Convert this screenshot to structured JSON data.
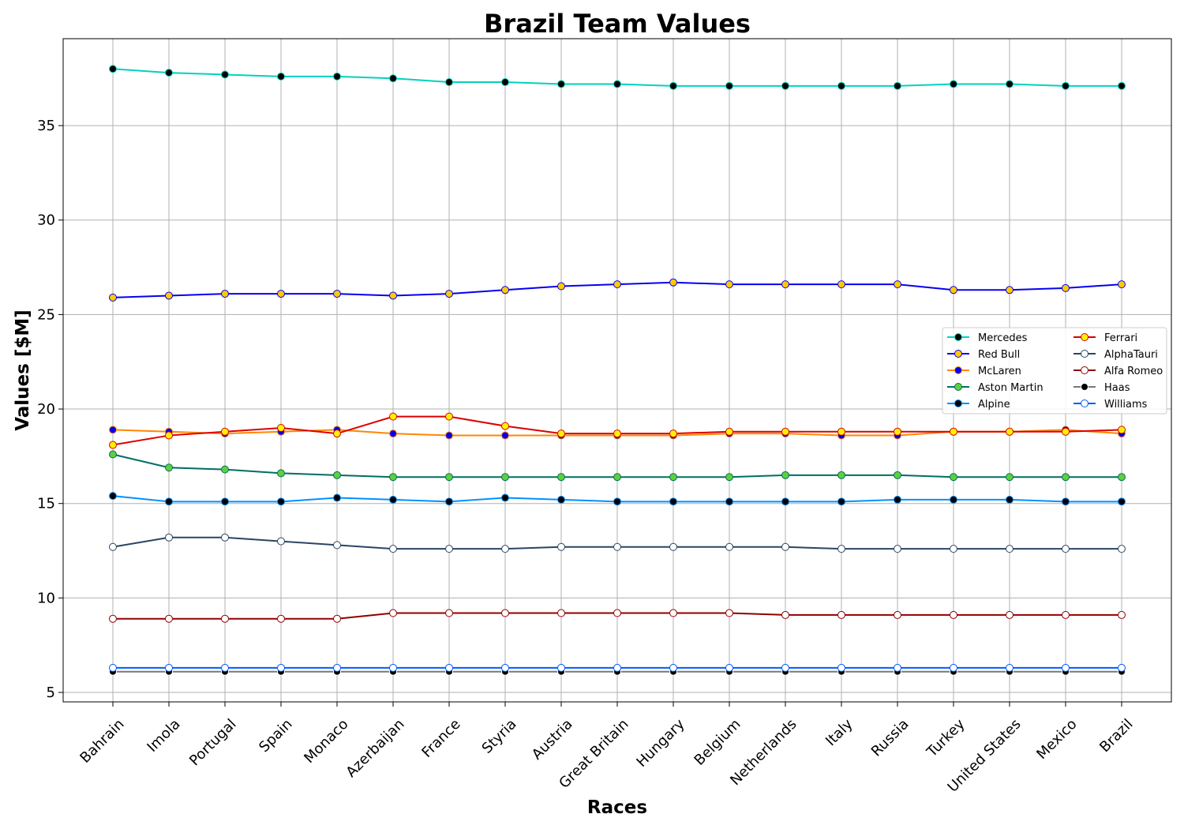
{
  "chart_data": {
    "type": "line",
    "title": "Brazil Team Values",
    "xlabel": "Races",
    "ylabel": "Values [$M]",
    "ylim": [
      4.5,
      39.6
    ],
    "yticks": [
      5,
      10,
      15,
      20,
      25,
      30,
      35
    ],
    "grid": true,
    "legend_position": "right",
    "categories": [
      "Bahrain",
      "Imola",
      "Portugal",
      "Spain",
      "Monaco",
      "Azerbaijan",
      "France",
      "Styria",
      "Austria",
      "Great Britain",
      "Hungary",
      "Belgium",
      "Netherlands",
      "Italy",
      "Russia",
      "Turkey",
      "United States",
      "Mexico",
      "Brazil"
    ],
    "series": [
      {
        "name": "Mercedes",
        "color": "#00D2BE",
        "marker_fill": "#000000",
        "marker_edge": "#00D2BE",
        "values": [
          38.0,
          37.8,
          37.7,
          37.6,
          37.6,
          37.5,
          37.3,
          37.3,
          37.2,
          37.2,
          37.1,
          37.1,
          37.1,
          37.1,
          37.1,
          37.2,
          37.2,
          37.1,
          37.1
        ]
      },
      {
        "name": "Red Bull",
        "color": "#0600EF",
        "marker_fill": "#FFC906",
        "marker_edge": "#0600EF",
        "values": [
          25.9,
          26.0,
          26.1,
          26.1,
          26.1,
          26.0,
          26.1,
          26.3,
          26.5,
          26.6,
          26.7,
          26.6,
          26.6,
          26.6,
          26.6,
          26.3,
          26.3,
          26.4,
          26.6
        ]
      },
      {
        "name": "McLaren",
        "color": "#FF8700",
        "marker_fill": "#0600EF",
        "marker_edge": "#FF8700",
        "values": [
          18.9,
          18.8,
          18.7,
          18.8,
          18.9,
          18.7,
          18.6,
          18.6,
          18.6,
          18.6,
          18.6,
          18.7,
          18.7,
          18.6,
          18.6,
          18.8,
          18.8,
          18.9,
          18.7
        ]
      },
      {
        "name": "Aston Martin",
        "color": "#006F62",
        "marker_fill": "#5FCF3C",
        "marker_edge": "#006F62",
        "values": [
          17.6,
          16.9,
          16.8,
          16.6,
          16.5,
          16.4,
          16.4,
          16.4,
          16.4,
          16.4,
          16.4,
          16.4,
          16.5,
          16.5,
          16.5,
          16.4,
          16.4,
          16.4,
          16.4
        ]
      },
      {
        "name": "Alpine",
        "color": "#0090FF",
        "marker_fill": "#000000",
        "marker_edge": "#0090FF",
        "values": [
          15.4,
          15.1,
          15.1,
          15.1,
          15.3,
          15.2,
          15.1,
          15.3,
          15.2,
          15.1,
          15.1,
          15.1,
          15.1,
          15.1,
          15.2,
          15.2,
          15.2,
          15.1,
          15.1
        ]
      },
      {
        "name": "Ferrari",
        "color": "#DC0000",
        "marker_fill": "#FFF200",
        "marker_edge": "#DC0000",
        "values": [
          18.1,
          18.6,
          18.8,
          19.0,
          18.7,
          19.6,
          19.6,
          19.1,
          18.7,
          18.7,
          18.7,
          18.8,
          18.8,
          18.8,
          18.8,
          18.8,
          18.8,
          18.8,
          18.9
        ]
      },
      {
        "name": "AlphaTauri",
        "color": "#2B4562",
        "marker_fill": "#FFFFFF",
        "marker_edge": "#2B4562",
        "values": [
          12.7,
          13.2,
          13.2,
          13.0,
          12.8,
          12.6,
          12.6,
          12.6,
          12.7,
          12.7,
          12.7,
          12.7,
          12.7,
          12.6,
          12.6,
          12.6,
          12.6,
          12.6,
          12.6
        ]
      },
      {
        "name": "Alfa Romeo",
        "color": "#900000",
        "marker_fill": "#FFFFFF",
        "marker_edge": "#900000",
        "values": [
          8.9,
          8.9,
          8.9,
          8.9,
          8.9,
          9.2,
          9.2,
          9.2,
          9.2,
          9.2,
          9.2,
          9.2,
          9.1,
          9.1,
          9.1,
          9.1,
          9.1,
          9.1,
          9.1
        ]
      },
      {
        "name": "Haas",
        "color": "#787878",
        "marker_fill": "#000000",
        "marker_edge": "#FFFFFF",
        "values": [
          6.1,
          6.1,
          6.1,
          6.1,
          6.1,
          6.1,
          6.1,
          6.1,
          6.1,
          6.1,
          6.1,
          6.1,
          6.1,
          6.1,
          6.1,
          6.1,
          6.1,
          6.1,
          6.1
        ]
      },
      {
        "name": "Williams",
        "color": "#005AFF",
        "marker_fill": "#FFFFFF",
        "marker_edge": "#005AFF",
        "values": [
          6.3,
          6.3,
          6.3,
          6.3,
          6.3,
          6.3,
          6.3,
          6.3,
          6.3,
          6.3,
          6.3,
          6.3,
          6.3,
          6.3,
          6.3,
          6.3,
          6.3,
          6.3,
          6.3
        ]
      }
    ]
  }
}
